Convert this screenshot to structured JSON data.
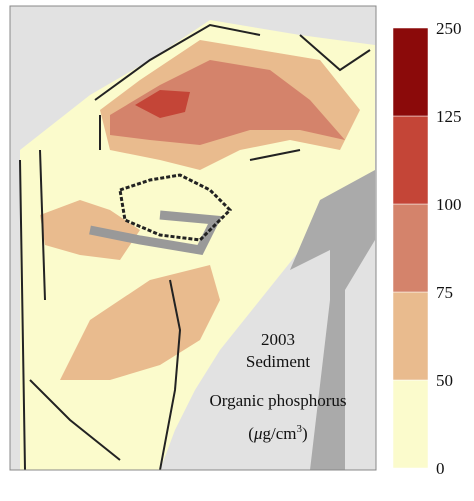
{
  "annotation": {
    "year": "2003",
    "medium": "Sediment",
    "variable": "Organic phosphorus",
    "unit_open": "(",
    "unit_mu": "μ",
    "unit_base": "g/cm",
    "unit_exp": "3",
    "unit_close": ")"
  },
  "legend": {
    "ticks": [
      0,
      50,
      75,
      100,
      125,
      250
    ],
    "colors": [
      "#fbfbcc",
      "#e9bb8e",
      "#d4836b",
      "#c44537",
      "#8b0a0a"
    ]
  }
}
